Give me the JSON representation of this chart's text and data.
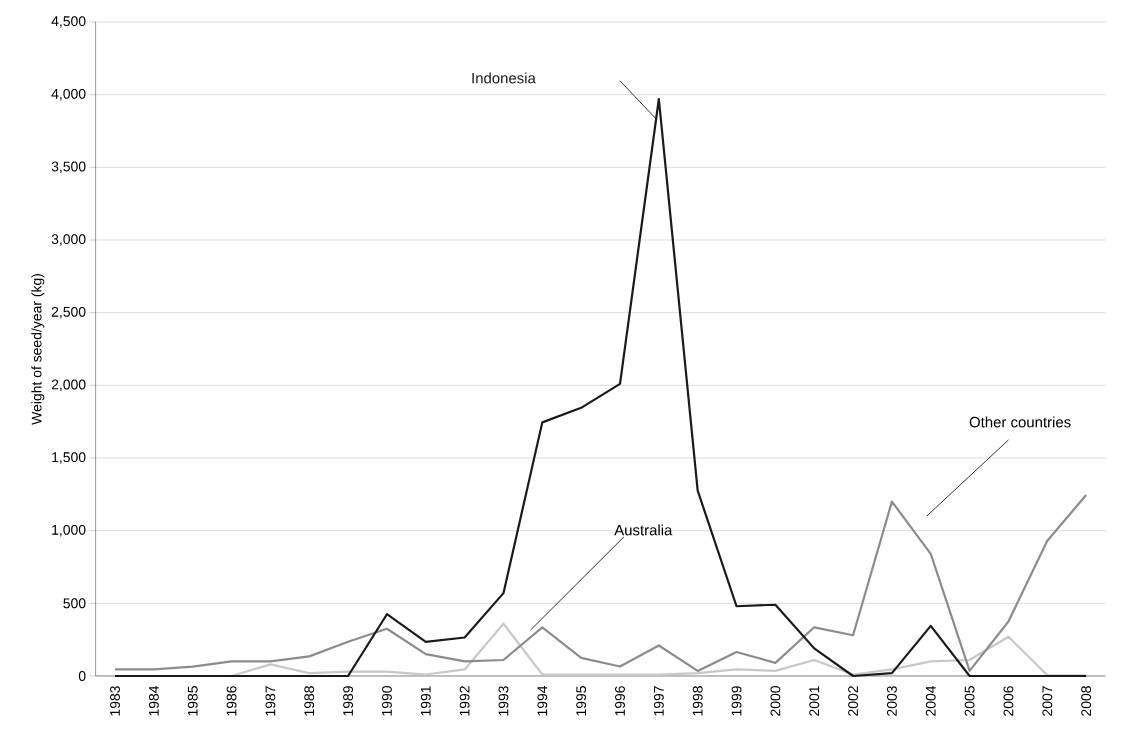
{
  "chart_data": {
    "type": "line",
    "ylabel": "Weight of seed/year (kg)",
    "categories": [
      "1983",
      "1984",
      "1985",
      "1986",
      "1987",
      "1988",
      "1989",
      "1990",
      "1991",
      "1992",
      "1993",
      "1994",
      "1995",
      "1996",
      "1997",
      "1998",
      "1999",
      "2000",
      "2001",
      "2002",
      "2003",
      "2004",
      "2005",
      "2006",
      "2007",
      "2008"
    ],
    "series": [
      {
        "name": "Indonesia",
        "color": "#1a1a1a",
        "values": [
          0,
          0,
          0,
          0,
          0,
          0,
          0,
          425,
          235,
          265,
          570,
          1745,
          1845,
          2010,
          3970,
          1275,
          480,
          490,
          190,
          0,
          20,
          345,
          0,
          0,
          0,
          0
        ]
      },
      {
        "name": "Other countries",
        "color": "#8c8c8c",
        "values": [
          45,
          45,
          65,
          100,
          100,
          135,
          235,
          325,
          150,
          100,
          110,
          335,
          125,
          65,
          210,
          35,
          165,
          90,
          335,
          280,
          1200,
          840,
          35,
          375,
          930,
          1245
        ]
      },
      {
        "name": "Australia",
        "color": "#c8c8c8",
        "values": [
          null,
          null,
          null,
          0,
          80,
          20,
          30,
          30,
          10,
          45,
          360,
          10,
          10,
          10,
          10,
          20,
          45,
          35,
          110,
          10,
          45,
          100,
          110,
          270,
          5,
          5
        ]
      }
    ],
    "ylim": [
      0,
      4500
    ],
    "yticks": [
      {
        "value": 0,
        "label": "0"
      },
      {
        "value": 500,
        "label": "500"
      },
      {
        "value": 1000,
        "label": "1,000"
      },
      {
        "value": 1500,
        "label": "1,500"
      },
      {
        "value": 2000,
        "label": "2,000"
      },
      {
        "value": 2500,
        "label": "2,500"
      },
      {
        "value": 3000,
        "label": "3,000"
      },
      {
        "value": 3500,
        "label": "3,500"
      },
      {
        "value": 4000,
        "label": "4,000"
      },
      {
        "value": 4500,
        "label": "4,500"
      }
    ],
    "grid": "y",
    "legend": false,
    "marker": "none",
    "line_style": "solid"
  }
}
